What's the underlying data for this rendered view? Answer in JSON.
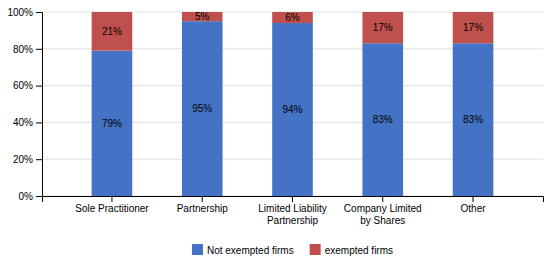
{
  "chart_data": {
    "type": "bar",
    "stacked": true,
    "categories": [
      "Sole Practitioner",
      "Partnership",
      "Limited Liability\nPartnership",
      "Company Limited\nby Shares",
      "Other"
    ],
    "series": [
      {
        "name": "Not exempted firms",
        "color": "#4472C4",
        "values": [
          79,
          95,
          94,
          83,
          83
        ],
        "value_labels": [
          "79%",
          "95%",
          "94%",
          "83%",
          "83%"
        ]
      },
      {
        "name": "exempted firms",
        "color": "#C0504D",
        "values": [
          21,
          5,
          6,
          17,
          17
        ],
        "value_labels": [
          "21%",
          "5%",
          "6%",
          "17%",
          "17%"
        ]
      }
    ],
    "ylim": [
      0,
      100
    ],
    "yticks": [
      {
        "value": 0,
        "label": "0%"
      },
      {
        "value": 20,
        "label": "20%"
      },
      {
        "value": 40,
        "label": "40%"
      },
      {
        "value": 60,
        "label": "60%"
      },
      {
        "value": 80,
        "label": "80%"
      },
      {
        "value": 100,
        "label": "100%"
      }
    ],
    "grid": true,
    "data_labels": true,
    "legend": "bottom"
  }
}
